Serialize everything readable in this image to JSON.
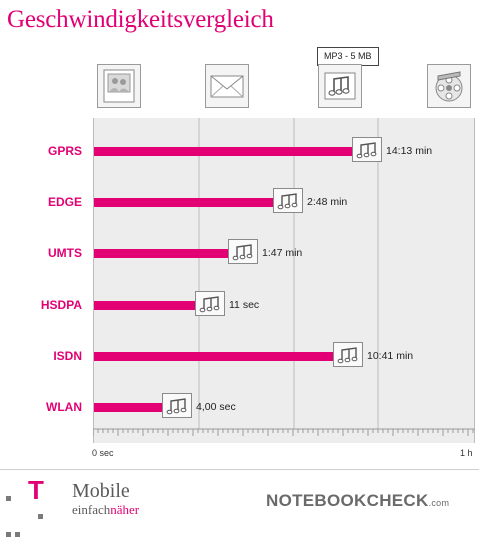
{
  "title": "Geschwindigkeitsvergleich",
  "tooltip": "MP3 - 5 MB",
  "media_icons": [
    "photo-icon",
    "mail-icon",
    "music-icon",
    "film-icon"
  ],
  "colors": {
    "accent": "#e20074",
    "plot_bg": "#ededed",
    "grid": "#bdbdbd"
  },
  "chart_data": {
    "type": "bar",
    "orientation": "horizontal",
    "categories": [
      "GPRS",
      "EDGE",
      "UMTS",
      "HSDPA",
      "ISDN",
      "WLAN"
    ],
    "values": [
      14.22,
      2.8,
      1.78,
      0.18,
      10.68,
      0.07
    ],
    "value_unit": "min",
    "value_labels": [
      "14:13 min",
      "2:48 min",
      "1:47 min",
      "11 sec",
      "10:41 min",
      "4,00 sec"
    ],
    "xlim": [
      0,
      60
    ],
    "x_axis_mode": "non-linear",
    "x_ticks": [
      "0 sec",
      "1 h"
    ],
    "grid": true
  },
  "footer": {
    "brand_t": "T",
    "brand_name": "Mobile",
    "slogan_part1": "einfach",
    "slogan_part2": "näher",
    "notebookcheck": "NOTEBOOKCHECK",
    "notebookcheck_tld": ".com"
  }
}
